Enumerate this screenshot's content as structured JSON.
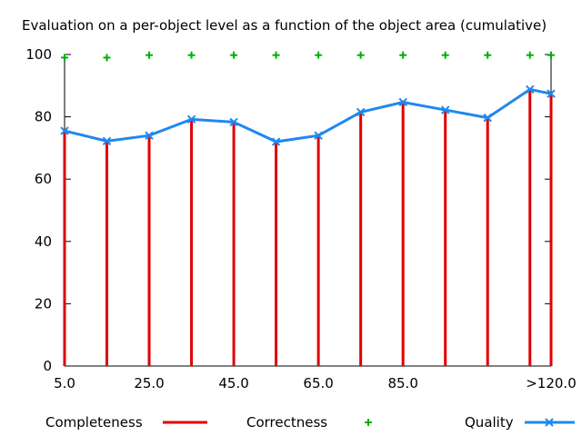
{
  "chart_data": {
    "type": "line",
    "title": "Evaluation on a per-object level as a function of the object area (cumulative)",
    "x_tick_labels": [
      "5.0",
      "25.0",
      "45.0",
      "65.0",
      "85.0",
      ">120.0"
    ],
    "x_values": [
      5,
      15,
      25,
      35,
      45,
      55,
      65,
      75,
      85,
      95,
      105,
      115,
      120
    ],
    "xlim": [
      5,
      120
    ],
    "y_ticks": [
      0,
      20,
      40,
      60,
      80,
      100
    ],
    "ylim": [
      0,
      100
    ],
    "grid": false,
    "legend_position": "bottom",
    "series": [
      {
        "name": "Completeness",
        "style": "impulses",
        "color": "#e00000",
        "values": [
          75.5,
          72.2,
          74.0,
          79.2,
          78.3,
          72.0,
          74.0,
          81.5,
          84.7,
          82.2,
          79.7,
          88.8,
          87.4
        ]
      },
      {
        "name": "Correctness",
        "style": "points-plus",
        "color": "#00b000",
        "values": [
          99.0,
          99.0,
          99.8,
          99.8,
          99.8,
          99.8,
          99.8,
          99.8,
          99.8,
          99.8,
          99.8,
          99.8,
          99.8
        ]
      },
      {
        "name": "Quality",
        "style": "linespoints-x",
        "color": "#1f88ee",
        "values": [
          75.5,
          72.2,
          74.0,
          79.2,
          78.3,
          72.0,
          74.0,
          81.5,
          84.7,
          82.2,
          79.7,
          88.8,
          87.4
        ]
      }
    ]
  }
}
